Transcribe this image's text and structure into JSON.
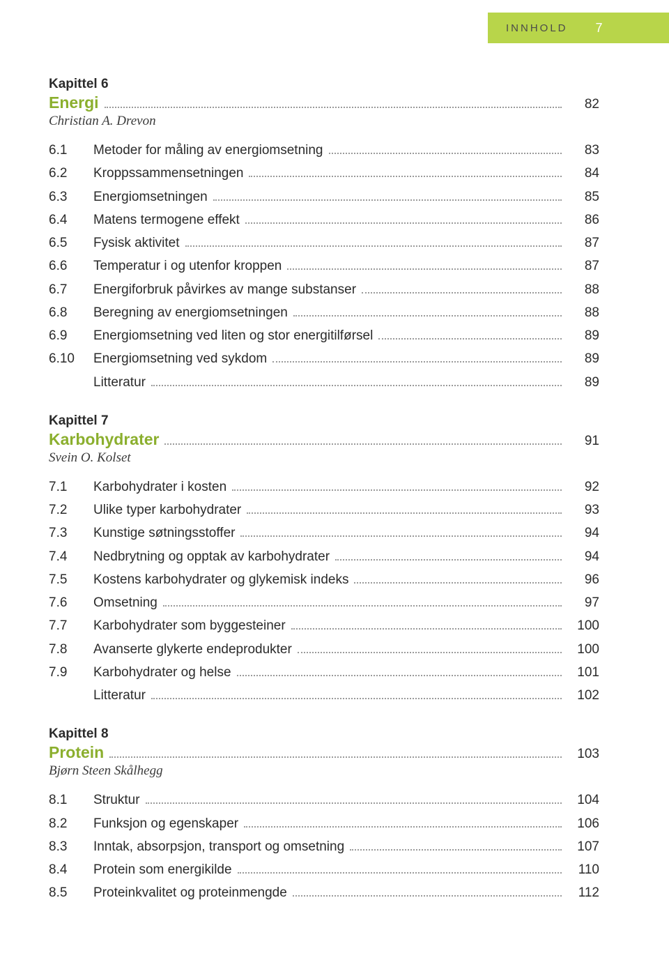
{
  "header": {
    "label": "INNHOLD",
    "page": "7"
  },
  "styling": {
    "accent_color": "#8baf2e",
    "band_color": "#b8d54a",
    "text_color": "#2b2b2b",
    "leader_color": "#9a9a9a",
    "page_bg": "#ffffff",
    "body_font_size": 19,
    "title_font_size": 23
  },
  "chapters": [
    {
      "heading": "Kapittel 6",
      "title": "Energi",
      "page": "82",
      "author": "Christian A. Drevon",
      "items": [
        {
          "num": "6.1",
          "title": "Metoder for måling av energiomsetning",
          "page": "83"
        },
        {
          "num": "6.2",
          "title": "Kroppssammensetningen",
          "page": "84"
        },
        {
          "num": "6.3",
          "title": "Energiomsetningen",
          "page": "85"
        },
        {
          "num": "6.4",
          "title": "Matens termogene effekt",
          "page": "86"
        },
        {
          "num": "6.5",
          "title": "Fysisk aktivitet",
          "page": "87"
        },
        {
          "num": "6.6",
          "title": "Temperatur i og utenfor kroppen",
          "page": "87"
        },
        {
          "num": "6.7",
          "title": "Energiforbruk påvirkes av mange substanser",
          "page": "88"
        },
        {
          "num": "6.8",
          "title": "Beregning av energiomsetningen",
          "page": "88"
        },
        {
          "num": "6.9",
          "title": "Energiomsetning ved liten og stor energitilførsel",
          "page": "89"
        },
        {
          "num": "6.10",
          "title": "Energiomsetning ved sykdom",
          "page": "89"
        },
        {
          "num": "",
          "title": "Litteratur",
          "page": "89"
        }
      ]
    },
    {
      "heading": "Kapittel 7",
      "title": "Karbohydrater",
      "page": "91",
      "author": "Svein O. Kolset",
      "items": [
        {
          "num": "7.1",
          "title": "Karbohydrater i kosten",
          "page": "92"
        },
        {
          "num": "7.2",
          "title": "Ulike typer karbohydrater",
          "page": "93"
        },
        {
          "num": "7.3",
          "title": "Kunstige søtningsstoffer",
          "page": "94"
        },
        {
          "num": "7.4",
          "title": "Nedbrytning og opptak av karbohydrater",
          "page": "94"
        },
        {
          "num": "7.5",
          "title": "Kostens karbohydrater og glykemisk indeks",
          "page": "96"
        },
        {
          "num": "7.6",
          "title": "Omsetning",
          "page": "97"
        },
        {
          "num": "7.7",
          "title": "Karbohydrater som byggesteiner",
          "page": "100"
        },
        {
          "num": "7.8",
          "title": "Avanserte glykerte endeprodukter",
          "page": "100"
        },
        {
          "num": "7.9",
          "title": "Karbohydrater og helse",
          "page": "101"
        },
        {
          "num": "",
          "title": "Litteratur",
          "page": "102"
        }
      ]
    },
    {
      "heading": "Kapittel 8",
      "title": "Protein",
      "page": "103",
      "author": "Bjørn Steen Skålhegg",
      "items": [
        {
          "num": "8.1",
          "title": "Struktur",
          "page": "104"
        },
        {
          "num": "8.2",
          "title": "Funksjon og egenskaper",
          "page": "106"
        },
        {
          "num": "8.3",
          "title": "Inntak, absorpsjon, transport og omsetning",
          "page": "107"
        },
        {
          "num": "8.4",
          "title": "Protein som energikilde",
          "page": "110"
        },
        {
          "num": "8.5",
          "title": "Proteinkvalitet og proteinmengde",
          "page": "112"
        }
      ]
    }
  ]
}
